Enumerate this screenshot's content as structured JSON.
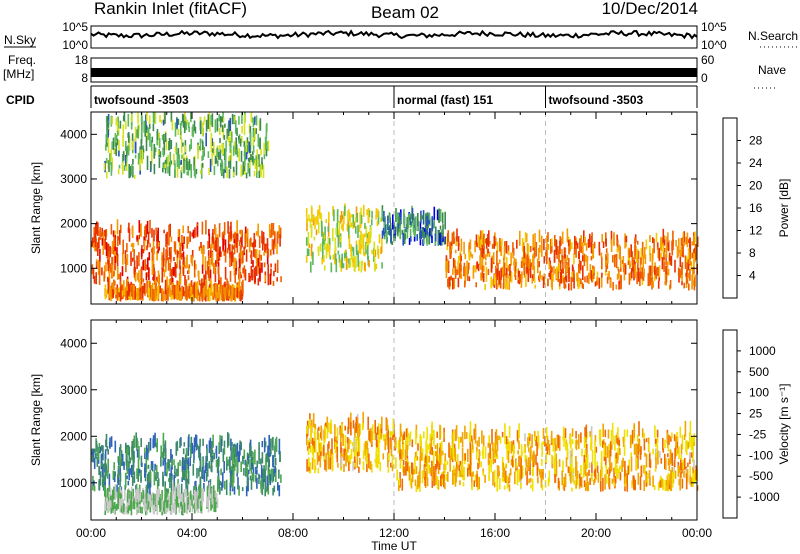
{
  "header": {
    "title": "Rankin Inlet (fitACF)",
    "beam": "Beam 02",
    "date": "10/Dec/2014"
  },
  "strip": {
    "nsky_label": "N.Sky",
    "nsearch_label": "N.Search",
    "nsky_ticks": [
      "10^5",
      "10^0"
    ],
    "nsearch_ticks": [
      "10^5",
      "10^0"
    ],
    "freq_label": "Freq.",
    "freq_unit": "[MHz]",
    "freq_ticks": [
      "18",
      "8"
    ],
    "nave_label": "Nave",
    "nave_ticks": [
      "60",
      "0"
    ],
    "cpid_label": "CPID",
    "cpid_segments": [
      {
        "label": "twofsound -3503",
        "start_h": 0,
        "end_h": 12
      },
      {
        "label": "normal (fast) 151",
        "start_h": 12,
        "end_h": 18
      },
      {
        "label": "twofsound -3503",
        "start_h": 18,
        "end_h": 24
      }
    ]
  },
  "chart_data": [
    {
      "type": "heatmap",
      "title": "",
      "ylabel": "Slant Range [km]",
      "xlabel": "Time UT",
      "ylim": [
        200,
        4500
      ],
      "xlim_hours": [
        0,
        24
      ],
      "y_ticks": [
        "1000",
        "2000",
        "3000",
        "4000"
      ],
      "x_ticks": [
        "00:00",
        "04:00",
        "08:00",
        "12:00",
        "16:00",
        "20:00",
        "00:00"
      ],
      "colorbar": {
        "label": "Power [dB]",
        "ticks": [
          "28",
          "24",
          "20",
          "16",
          "12",
          "8",
          "4"
        ],
        "colors": [
          "#0000e6",
          "#2454b8",
          "#3d8a50",
          "#5cb85c",
          "#d6e21e",
          "#f5c800",
          "#f59a00",
          "#ef6200",
          "#e83000",
          "#e00000"
        ]
      },
      "regions": [
        {
          "name": "low-range echoes",
          "t_start": 0,
          "t_end": 7.5,
          "r_low": 600,
          "r_high": 1800,
          "power_db": 28
        },
        {
          "name": "near-range band",
          "t_start": 0.5,
          "t_end": 6,
          "r_low": 250,
          "r_high": 450,
          "power_db": 26
        },
        {
          "name": "mid-day band",
          "t_start": 8.5,
          "t_end": 11.5,
          "r_low": 900,
          "r_high": 2200,
          "power_db": 18
        },
        {
          "name": "noon band",
          "t_start": 11.5,
          "t_end": 14,
          "r_low": 1500,
          "r_high": 2100,
          "power_db": 10
        },
        {
          "name": "afternoon band",
          "t_start": 14,
          "t_end": 24,
          "r_low": 500,
          "r_high": 1600,
          "power_db": 26
        },
        {
          "name": "sparse far-range",
          "t_start": 0.5,
          "t_end": 7,
          "r_low": 3000,
          "r_high": 4300,
          "power_db": 14
        }
      ]
    },
    {
      "type": "heatmap",
      "title": "",
      "ylabel": "Slant Range [km]",
      "xlabel": "Time UT",
      "ylim": [
        200,
        4500
      ],
      "xlim_hours": [
        0,
        24
      ],
      "y_ticks": [
        "1000",
        "2000",
        "3000",
        "4000"
      ],
      "x_ticks": [
        "00:00",
        "04:00",
        "08:00",
        "12:00",
        "16:00",
        "20:00",
        "00:00"
      ],
      "colorbar": {
        "label": "Velocity [m s⁻¹]",
        "ticks": [
          "1000",
          "500",
          "100",
          "25",
          "-25",
          "-100",
          "-500",
          "-1000"
        ],
        "colors": [
          "#1f3fbf",
          "#2e63b8",
          "#3c8a6a",
          "#4da84d",
          "#c8c8c8",
          "#f0e000",
          "#f2a400",
          "#f06a00",
          "#e61a00"
        ]
      },
      "regions": [
        {
          "name": "morning band",
          "t_start": 0,
          "t_end": 7.5,
          "r_low": 700,
          "r_high": 1800,
          "velocity": 150
        },
        {
          "name": "mid-day band",
          "t_start": 8.5,
          "t_end": 12,
          "r_low": 1200,
          "r_high": 2200,
          "velocity": -200
        },
        {
          "name": "afternoon band",
          "t_start": 12,
          "t_end": 24,
          "r_low": 800,
          "r_high": 2000,
          "velocity": -150
        },
        {
          "name": "ground scatter",
          "t_start": 0.5,
          "t_end": 5,
          "r_low": 300,
          "r_high": 700,
          "velocity": 0
        }
      ]
    }
  ]
}
